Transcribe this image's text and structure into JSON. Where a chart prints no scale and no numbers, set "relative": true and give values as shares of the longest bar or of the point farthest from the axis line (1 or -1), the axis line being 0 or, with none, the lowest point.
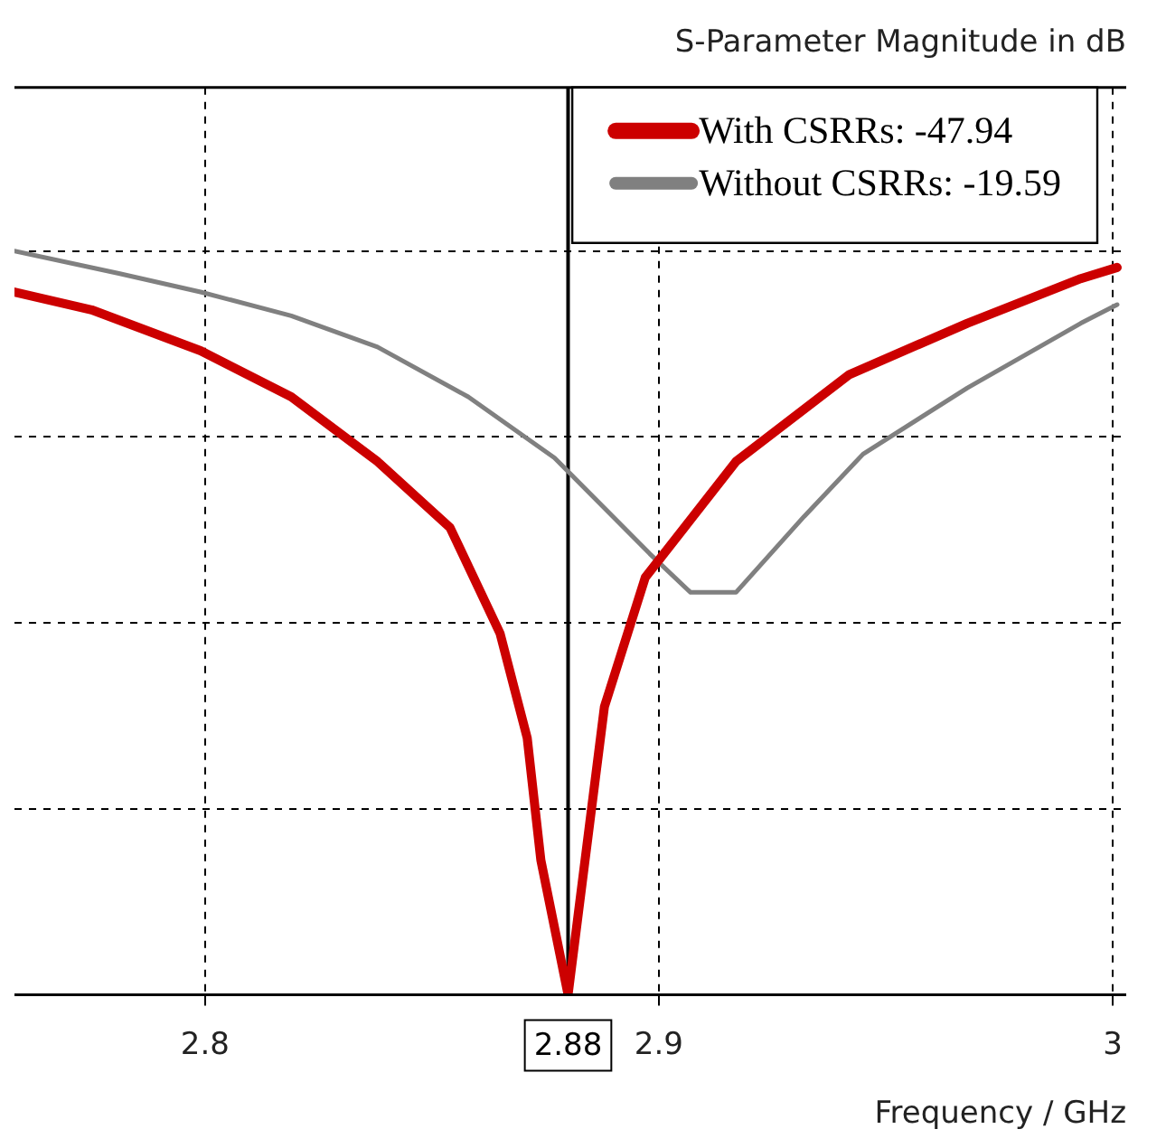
{
  "chart_data": {
    "type": "line",
    "title": "S-Parameter Magnitude in dB",
    "xlabel": "Frequency / GHz",
    "relative": true,
    "xlim": [
      2.758,
      3.003
    ],
    "xticks": [
      2.8,
      2.9,
      3
    ],
    "grid": true,
    "legend": "top right",
    "marker": "none",
    "line_style": "solid",
    "ref_lines": [
      {
        "axis": "x",
        "value": 2.88,
        "label": "2.88",
        "color": "#000000"
      }
    ],
    "series": [
      {
        "name": "With CSRRs: -47.94",
        "color": "#cc0000",
        "x": [
          2.758,
          2.775,
          2.799,
          2.819,
          2.838,
          2.854,
          2.865,
          2.871,
          2.874,
          2.88,
          2.888,
          2.897,
          2.917,
          2.942,
          2.968,
          2.993,
          3.001
        ],
        "values": [
          0.945,
          0.921,
          0.866,
          0.804,
          0.717,
          0.628,
          0.486,
          0.345,
          0.181,
          0,
          0.387,
          0.561,
          0.717,
          0.834,
          0.903,
          0.963,
          0.978
        ]
      },
      {
        "name": "Without CSRRs: -19.59",
        "color": "#808080",
        "x": [
          2.758,
          2.781,
          2.799,
          2.819,
          2.838,
          2.858,
          2.877,
          2.898,
          2.907,
          2.917,
          2.932,
          2.945,
          2.968,
          2.993,
          3.001
        ],
        "values": [
          1,
          0.97,
          0.945,
          0.913,
          0.871,
          0.804,
          0.722,
          0.593,
          0.541,
          0.541,
          0.643,
          0.727,
          0.816,
          0.903,
          0.928
        ]
      }
    ]
  }
}
